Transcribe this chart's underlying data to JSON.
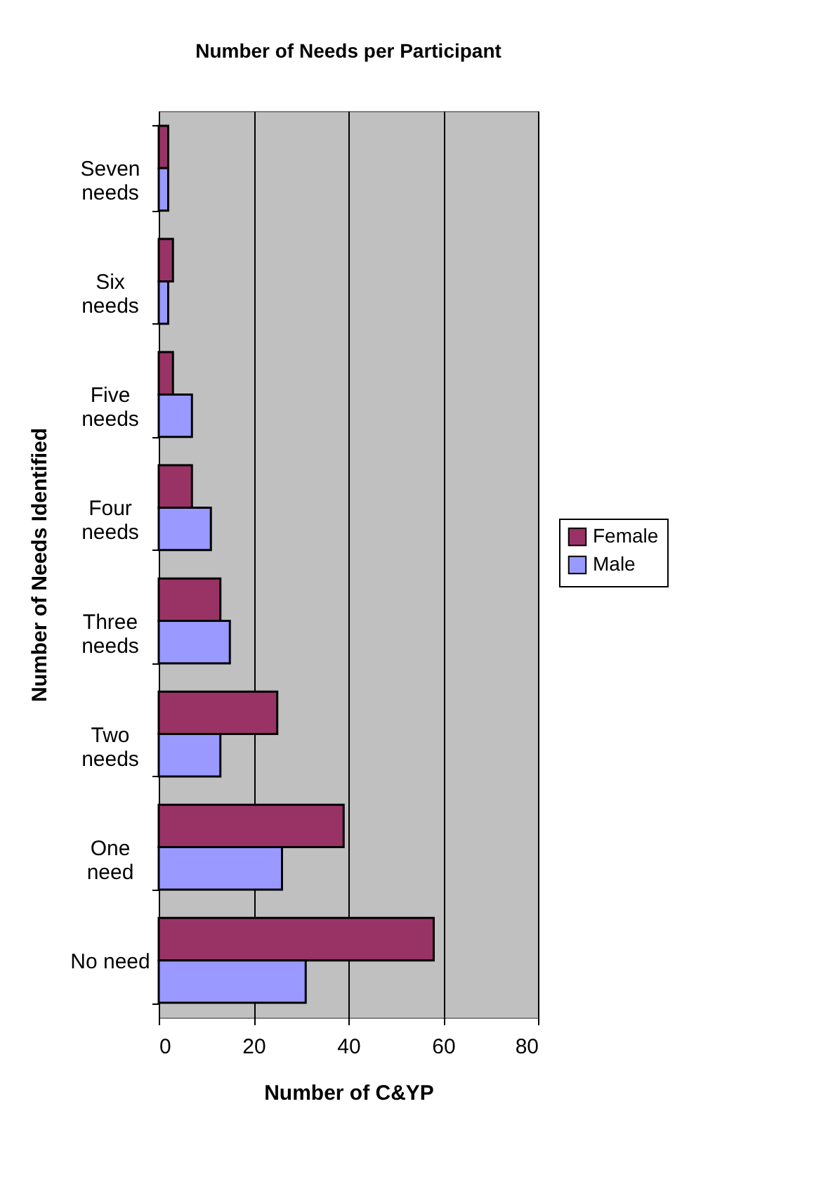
{
  "chart_data": {
    "type": "bar",
    "orientation": "horizontal",
    "title": "Number of Needs per Participant",
    "xlabel": "Number of C&YP",
    "ylabel": "Number of Needs Identified",
    "categories": [
      "Seven needs",
      "Six needs",
      "Five needs",
      "Four needs",
      "Three needs",
      "Two needs",
      "One need",
      "No need"
    ],
    "series": [
      {
        "name": "Female",
        "color": "#993366",
        "values": [
          2,
          3,
          3,
          7,
          13,
          25,
          39,
          58
        ]
      },
      {
        "name": "Male",
        "color": "#9999ff",
        "values": [
          2,
          2,
          7,
          11,
          15,
          13,
          26,
          31
        ]
      }
    ],
    "xlim": [
      0,
      80
    ],
    "xticks": [
      0,
      20,
      40,
      60,
      80
    ],
    "grid": "x",
    "legend": "right"
  }
}
